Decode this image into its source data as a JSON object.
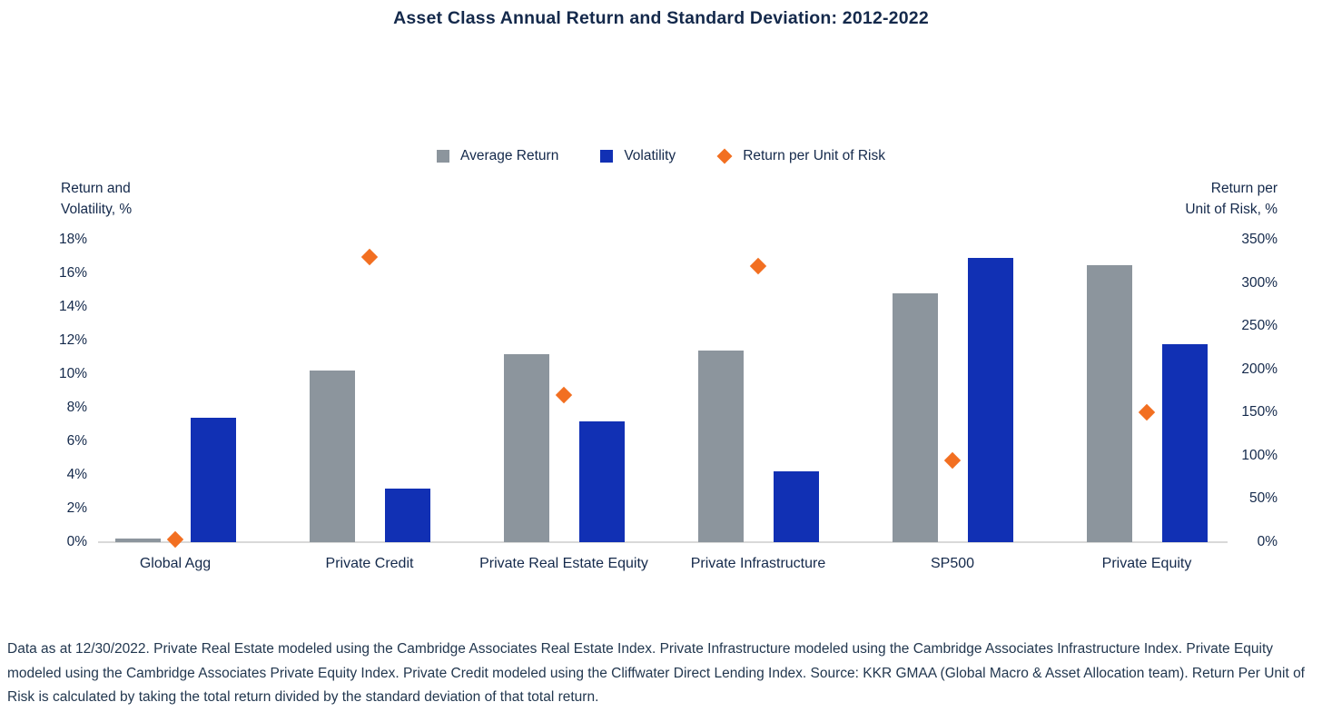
{
  "title": "Asset Class Annual Return and Standard Deviation: 2012-2022",
  "colors": {
    "average_return": "#8C959D",
    "volatility": "#1130B4",
    "return_per_unit_of_risk": "#F26F21",
    "text": "#14294B",
    "baseline": "#D9D9D9"
  },
  "legend": {
    "items": [
      {
        "label": "Average Return",
        "swatch": "square",
        "color_key": "average_return"
      },
      {
        "label": "Volatility",
        "swatch": "square",
        "color_key": "volatility"
      },
      {
        "label": "Return per Unit of Risk",
        "swatch": "diamond",
        "color_key": "return_per_unit_of_risk"
      }
    ]
  },
  "left_axis": {
    "title_line1": "Return and",
    "title_line2": "Volatility, %",
    "ticks": [
      "18%",
      "16%",
      "14%",
      "12%",
      "10%",
      "8%",
      "6%",
      "4%",
      "2%",
      "0%"
    ]
  },
  "right_axis": {
    "title_line1": "Return per",
    "title_line2": "Unit of Risk, %",
    "ticks": [
      "350%",
      "300%",
      "250%",
      "200%",
      "150%",
      "100%",
      "50%",
      "0%"
    ]
  },
  "chart_data": {
    "type": "bar",
    "title": "Asset Class Annual Return and Standard Deviation: 2012-2022",
    "categories": [
      "Global Agg",
      "Private Credit",
      "Private Real Estate Equity",
      "Private Infrastructure",
      "SP500",
      "Private Equity"
    ],
    "series": [
      {
        "name": "Average Return",
        "render": "bar",
        "axis": "left",
        "unit": "%",
        "values": [
          0.2,
          10.2,
          11.2,
          11.4,
          14.8,
          16.5
        ]
      },
      {
        "name": "Volatility",
        "render": "bar",
        "axis": "left",
        "unit": "%",
        "values": [
          7.4,
          3.2,
          7.2,
          4.2,
          16.9,
          11.8
        ]
      },
      {
        "name": "Return per Unit of Risk",
        "render": "diamond",
        "axis": "right",
        "unit": "%",
        "values": [
          3,
          330,
          170,
          320,
          95,
          150
        ]
      }
    ],
    "left_axis_label": "Return and Volatility, %",
    "right_axis_label": "Return per Unit of Risk, %",
    "left_ylim": [
      0,
      18
    ],
    "left_tick_step": 2,
    "right_ylim": [
      0,
      350
    ],
    "right_tick_step": 50,
    "legend_position": "top-center",
    "grid": false
  },
  "footnote": "Data as at 12/30/2022. Private Real Estate modeled using the Cambridge Associates Real Estate Index. Private Infrastructure modeled using the Cambridge Associates Infrastructure Index. Private Equity modeled using the Cambridge Associates Private Equity Index. Private Credit modeled using the Cliffwater Direct Lending Index. Source: KKR GMAA (Global Macro & Asset Allocation team). Return Per Unit of Risk is calculated by taking the total return divided by the standard deviation of that total return."
}
